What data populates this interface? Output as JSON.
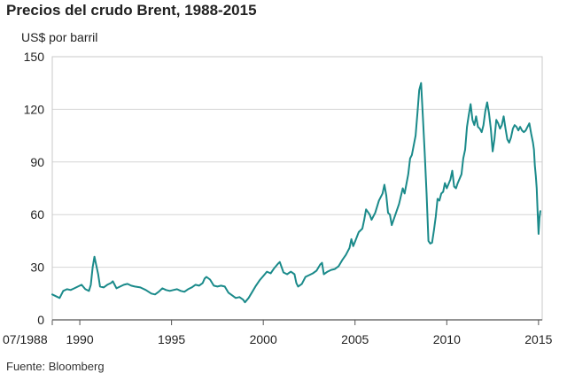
{
  "chart_data": {
    "type": "line",
    "title": "Precios del crudo Brent, 1988-2015",
    "ylabel": "US$ por barril",
    "xlabel": "",
    "ylim": [
      0,
      150
    ],
    "yticks": [
      0,
      30,
      60,
      90,
      120,
      150
    ],
    "xlim": [
      1988.5,
      2015.2
    ],
    "xticks": [
      {
        "value": 1988.5,
        "label": "07/1988"
      },
      {
        "value": 1990,
        "label": "1990"
      },
      {
        "value": 1995,
        "label": "1995"
      },
      {
        "value": 2000,
        "label": "2000"
      },
      {
        "value": 2005,
        "label": "2005"
      },
      {
        "value": 2010,
        "label": "2010"
      },
      {
        "value": 2015,
        "label": "2015"
      }
    ],
    "grid": true,
    "series": [
      {
        "color": "#1a8a8a",
        "points": [
          [
            1988.5,
            14.5
          ],
          [
            1988.7,
            13.5
          ],
          [
            1988.9,
            12.5
          ],
          [
            1989.1,
            16.5
          ],
          [
            1989.3,
            17.5
          ],
          [
            1989.5,
            17.0
          ],
          [
            1989.7,
            18.0
          ],
          [
            1989.9,
            19.0
          ],
          [
            1990.1,
            20.0
          ],
          [
            1990.3,
            17.5
          ],
          [
            1990.5,
            16.5
          ],
          [
            1990.6,
            20.0
          ],
          [
            1990.7,
            30.0
          ],
          [
            1990.8,
            36.0
          ],
          [
            1990.9,
            31.0
          ],
          [
            1991.0,
            26.0
          ],
          [
            1991.1,
            19.0
          ],
          [
            1991.3,
            18.5
          ],
          [
            1991.5,
            20.0
          ],
          [
            1991.7,
            21.0
          ],
          [
            1991.8,
            22.0
          ],
          [
            1992.0,
            18.0
          ],
          [
            1992.2,
            19.0
          ],
          [
            1992.4,
            20.0
          ],
          [
            1992.6,
            20.5
          ],
          [
            1992.8,
            19.5
          ],
          [
            1993.0,
            19.0
          ],
          [
            1993.3,
            18.5
          ],
          [
            1993.6,
            17.0
          ],
          [
            1993.9,
            15.0
          ],
          [
            1994.1,
            14.5
          ],
          [
            1994.3,
            16.0
          ],
          [
            1994.5,
            18.0
          ],
          [
            1994.7,
            17.0
          ],
          [
            1994.9,
            16.5
          ],
          [
            1995.1,
            17.0
          ],
          [
            1995.3,
            17.5
          ],
          [
            1995.5,
            16.5
          ],
          [
            1995.7,
            16.0
          ],
          [
            1995.9,
            17.5
          ],
          [
            1996.1,
            18.5
          ],
          [
            1996.3,
            20.0
          ],
          [
            1996.5,
            19.5
          ],
          [
            1996.7,
            21.0
          ],
          [
            1996.8,
            23.5
          ],
          [
            1996.9,
            24.5
          ],
          [
            1997.1,
            23.0
          ],
          [
            1997.3,
            19.5
          ],
          [
            1997.5,
            19.0
          ],
          [
            1997.7,
            19.5
          ],
          [
            1997.9,
            19.0
          ],
          [
            1998.1,
            15.5
          ],
          [
            1998.3,
            14.0
          ],
          [
            1998.5,
            12.5
          ],
          [
            1998.7,
            13.0
          ],
          [
            1998.9,
            11.5
          ],
          [
            1999.0,
            10.0
          ],
          [
            1999.2,
            12.5
          ],
          [
            1999.4,
            16.0
          ],
          [
            1999.6,
            19.5
          ],
          [
            1999.8,
            22.5
          ],
          [
            2000.0,
            25.0
          ],
          [
            2000.2,
            27.5
          ],
          [
            2000.4,
            26.5
          ],
          [
            2000.6,
            29.5
          ],
          [
            2000.8,
            32.0
          ],
          [
            2000.9,
            33.0
          ],
          [
            2001.1,
            27.0
          ],
          [
            2001.3,
            26.0
          ],
          [
            2001.5,
            27.5
          ],
          [
            2001.7,
            26.0
          ],
          [
            2001.8,
            21.0
          ],
          [
            2001.9,
            19.0
          ],
          [
            2002.1,
            20.5
          ],
          [
            2002.3,
            24.5
          ],
          [
            2002.5,
            25.5
          ],
          [
            2002.7,
            26.5
          ],
          [
            2002.9,
            28.0
          ],
          [
            2003.1,
            31.5
          ],
          [
            2003.2,
            32.5
          ],
          [
            2003.3,
            26.0
          ],
          [
            2003.5,
            27.5
          ],
          [
            2003.7,
            28.5
          ],
          [
            2003.9,
            29.0
          ],
          [
            2004.1,
            30.5
          ],
          [
            2004.3,
            34.0
          ],
          [
            2004.5,
            37.0
          ],
          [
            2004.7,
            41.0
          ],
          [
            2004.8,
            46.0
          ],
          [
            2004.9,
            42.0
          ],
          [
            2005.0,
            44.5
          ],
          [
            2005.2,
            50.0
          ],
          [
            2005.4,
            52.0
          ],
          [
            2005.5,
            57.0
          ],
          [
            2005.6,
            63.0
          ],
          [
            2005.8,
            60.0
          ],
          [
            2005.9,
            57.0
          ],
          [
            2006.1,
            61.0
          ],
          [
            2006.3,
            68.0
          ],
          [
            2006.5,
            72.0
          ],
          [
            2006.6,
            77.0
          ],
          [
            2006.7,
            71.0
          ],
          [
            2006.8,
            61.0
          ],
          [
            2006.9,
            60.0
          ],
          [
            2007.0,
            54.0
          ],
          [
            2007.2,
            60.0
          ],
          [
            2007.4,
            66.0
          ],
          [
            2007.6,
            75.0
          ],
          [
            2007.7,
            72.0
          ],
          [
            2007.9,
            83.0
          ],
          [
            2008.0,
            92.0
          ],
          [
            2008.1,
            94.0
          ],
          [
            2008.3,
            105.0
          ],
          [
            2008.4,
            118.0
          ],
          [
            2008.5,
            131.0
          ],
          [
            2008.6,
            135.0
          ],
          [
            2008.7,
            115.0
          ],
          [
            2008.8,
            95.0
          ],
          [
            2008.9,
            72.0
          ],
          [
            2009.0,
            45.0
          ],
          [
            2009.1,
            43.5
          ],
          [
            2009.2,
            44.0
          ],
          [
            2009.3,
            51.0
          ],
          [
            2009.4,
            59.0
          ],
          [
            2009.5,
            69.0
          ],
          [
            2009.6,
            68.0
          ],
          [
            2009.7,
            72.0
          ],
          [
            2009.8,
            73.0
          ],
          [
            2009.9,
            78.0
          ],
          [
            2010.0,
            75.0
          ],
          [
            2010.2,
            80.0
          ],
          [
            2010.3,
            85.0
          ],
          [
            2010.4,
            76.0
          ],
          [
            2010.5,
            75.0
          ],
          [
            2010.6,
            78.0
          ],
          [
            2010.8,
            83.0
          ],
          [
            2010.9,
            92.0
          ],
          [
            2011.0,
            97.0
          ],
          [
            2011.1,
            110.0
          ],
          [
            2011.2,
            117.0
          ],
          [
            2011.3,
            123.0
          ],
          [
            2011.4,
            114.0
          ],
          [
            2011.5,
            111.0
          ],
          [
            2011.6,
            116.0
          ],
          [
            2011.7,
            110.0
          ],
          [
            2011.8,
            109.0
          ],
          [
            2011.9,
            107.0
          ],
          [
            2012.0,
            111.0
          ],
          [
            2012.1,
            119.0
          ],
          [
            2012.2,
            124.0
          ],
          [
            2012.3,
            118.0
          ],
          [
            2012.4,
            109.0
          ],
          [
            2012.5,
            96.0
          ],
          [
            2012.6,
            103.0
          ],
          [
            2012.7,
            114.0
          ],
          [
            2012.8,
            112.0
          ],
          [
            2012.9,
            109.0
          ],
          [
            2013.0,
            111.0
          ],
          [
            2013.1,
            116.0
          ],
          [
            2013.2,
            109.0
          ],
          [
            2013.3,
            103.0
          ],
          [
            2013.4,
            101.0
          ],
          [
            2013.5,
            104.0
          ],
          [
            2013.6,
            109.0
          ],
          [
            2013.7,
            111.0
          ],
          [
            2013.8,
            110.0
          ],
          [
            2013.9,
            108.0
          ],
          [
            2014.0,
            110.0
          ],
          [
            2014.1,
            108.0
          ],
          [
            2014.2,
            107.0
          ],
          [
            2014.3,
            108.0
          ],
          [
            2014.4,
            110.0
          ],
          [
            2014.5,
            112.0
          ],
          [
            2014.6,
            106.0
          ],
          [
            2014.7,
            101.0
          ],
          [
            2014.75,
            97.0
          ],
          [
            2014.8,
            88.0
          ],
          [
            2014.85,
            82.0
          ],
          [
            2014.9,
            75.0
          ],
          [
            2014.95,
            62.0
          ],
          [
            2015.0,
            49.0
          ],
          [
            2015.05,
            58.0
          ],
          [
            2015.1,
            62.0
          ]
        ]
      }
    ],
    "source": "Fuente: Bloomberg"
  }
}
